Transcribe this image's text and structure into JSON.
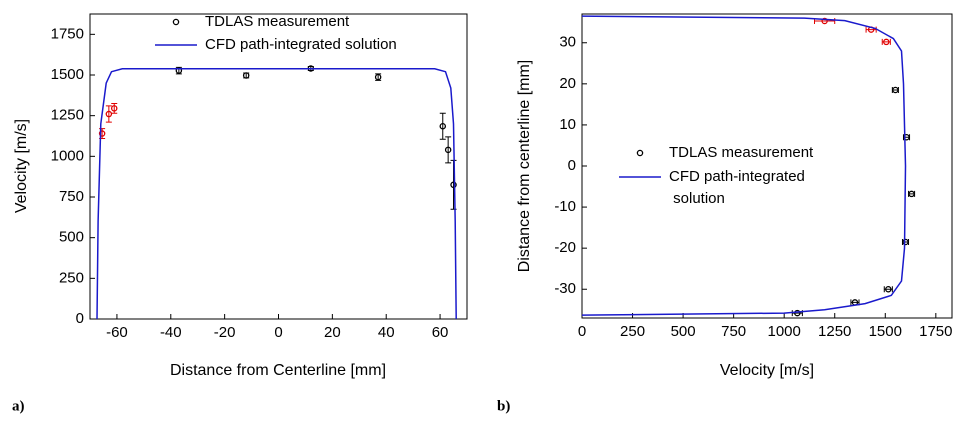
{
  "chart_data": [
    {
      "type": "scatter",
      "panel_label": "a)",
      "x_label": "Distance from Centerline [mm]",
      "y_label": "Velocity [m/s]",
      "xlim": [
        -70,
        70
      ],
      "ylim": [
        0,
        1875
      ],
      "xticks": [
        -60,
        -40,
        -20,
        0,
        20,
        40,
        60
      ],
      "yticks": [
        0,
        250,
        500,
        750,
        1000,
        1250,
        1500,
        1750
      ],
      "series": [
        {
          "name": "TDLAS measurement",
          "type": "scatter",
          "color": "#000000",
          "x": [
            -37,
            -12,
            12,
            37,
            61,
            63,
            65
          ],
          "values": [
            1527,
            1497,
            1540,
            1487,
            1185,
            1040,
            825
          ],
          "yerr": [
            20,
            15,
            12,
            20,
            80,
            80,
            150
          ]
        },
        {
          "type": "scatter",
          "color": "#e00000",
          "x": [
            -65.5,
            -63,
            -61
          ],
          "values": [
            1140,
            1260,
            1295
          ],
          "yerr": [
            30,
            50,
            30
          ]
        },
        {
          "name": "CFD path-integrated solution",
          "type": "line",
          "color": "#1a1acc",
          "x": [
            -67.4,
            -67,
            -66,
            -64,
            -62,
            -58,
            58,
            62,
            64,
            65,
            65.6,
            66
          ],
          "values": [
            0,
            600,
            1200,
            1450,
            1520,
            1538,
            1538,
            1520,
            1420,
            1200,
            600,
            0
          ]
        }
      ]
    },
    {
      "type": "scatter",
      "panel_label": "b)",
      "x_label": "Velocity [m/s]",
      "y_label": "Distance from centerline [mm]",
      "xlim": [
        0,
        1830
      ],
      "ylim": [
        -37,
        37
      ],
      "xticks": [
        0,
        250,
        500,
        750,
        1000,
        1250,
        1500,
        1750
      ],
      "yticks": [
        -30,
        -20,
        -10,
        0,
        10,
        20,
        30
      ],
      "series": [
        {
          "name": "TDLAS measurement",
          "type": "scatter",
          "color": "#000000",
          "x": [
            1550,
            1605,
            1630,
            1600,
            1515,
            1350,
            1065
          ],
          "values": [
            18.5,
            7,
            -6.8,
            -18.5,
            -30,
            -33.2,
            -35.8
          ],
          "xerr": [
            15,
            15,
            15,
            15,
            20,
            20,
            25
          ]
        },
        {
          "type": "scatter",
          "color": "#e00000",
          "x": [
            1200,
            1430,
            1505
          ],
          "values": [
            35.3,
            33.2,
            30.2
          ],
          "xerr": [
            50,
            25,
            20
          ]
        },
        {
          "name": "CFD path-integrated solution",
          "type": "line",
          "color": "#1a1acc",
          "x": [
            0,
            1100,
            1300,
            1450,
            1540,
            1580,
            1590,
            1600,
            1595,
            1580,
            1530,
            1400,
            1200,
            1000,
            0
          ],
          "values": [
            36.5,
            36,
            35.4,
            33.5,
            31,
            28,
            20,
            0,
            -20,
            -28,
            -31.5,
            -33.5,
            -35,
            -35.8,
            -36.3
          ]
        }
      ]
    }
  ]
}
